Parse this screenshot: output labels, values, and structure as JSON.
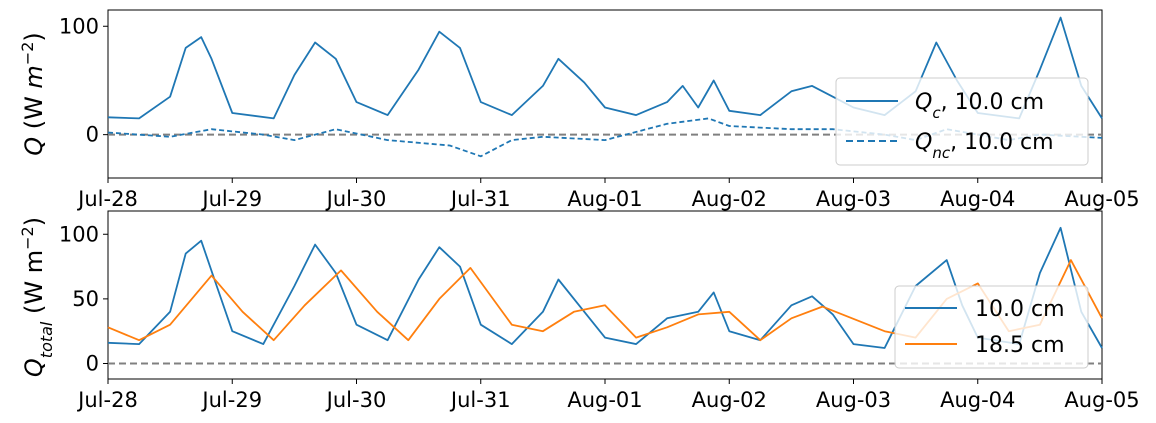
{
  "chart_data": [
    {
      "type": "line",
      "ylabel": "Q (W m⁻²)",
      "xlim": [
        "2019-07-28",
        "2019-08-05"
      ],
      "ylim": [
        -40,
        115
      ],
      "x_ticks": [
        "Jul-28",
        "Jul-29",
        "Jul-30",
        "Jul-31",
        "Aug-01",
        "Aug-02",
        "Aug-03",
        "Aug-04",
        "Aug-05"
      ],
      "y_ticks": [
        0,
        100
      ],
      "reference_line": {
        "y": 0,
        "style": "dashed",
        "color": "#808080"
      },
      "legend_position": "right",
      "series": [
        {
          "name": "Q_c, 10.0 cm",
          "style": "solid",
          "color": "#1f77b4",
          "points": [
            [
              "Jul-28",
              16
            ],
            [
              "Jul-28 06:00",
              15
            ],
            [
              "Jul-28 12:00",
              35
            ],
            [
              "Jul-28 15:00",
              80
            ],
            [
              "Jul-28 18:00",
              90
            ],
            [
              "Jul-28 20:00",
              70
            ],
            [
              "Jul-29 00:00",
              20
            ],
            [
              "Jul-29 08:00",
              15
            ],
            [
              "Jul-29 12:00",
              55
            ],
            [
              "Jul-29 16:00",
              85
            ],
            [
              "Jul-29 20:00",
              70
            ],
            [
              "Jul-30 00:00",
              30
            ],
            [
              "Jul-30 06:00",
              18
            ],
            [
              "Jul-30 12:00",
              60
            ],
            [
              "Jul-30 16:00",
              95
            ],
            [
              "Jul-30 20:00",
              80
            ],
            [
              "Jul-31 00:00",
              30
            ],
            [
              "Jul-31 06:00",
              18
            ],
            [
              "Jul-31 12:00",
              45
            ],
            [
              "Jul-31 15:00",
              70
            ],
            [
              "Jul-31 20:00",
              48
            ],
            [
              "Aug-01 00:00",
              25
            ],
            [
              "Aug-01 06:00",
              18
            ],
            [
              "Aug-01 12:00",
              30
            ],
            [
              "Aug-01 15:00",
              45
            ],
            [
              "Aug-01 18:00",
              25
            ],
            [
              "Aug-01 21:00",
              50
            ],
            [
              "Aug-02 00:00",
              22
            ],
            [
              "Aug-02 06:00",
              18
            ],
            [
              "Aug-02 12:00",
              40
            ],
            [
              "Aug-02 16:00",
              45
            ],
            [
              "Aug-02 20:00",
              35
            ],
            [
              "Aug-03 00:00",
              25
            ],
            [
              "Aug-03 06:00",
              18
            ],
            [
              "Aug-03 12:00",
              40
            ],
            [
              "Aug-03 16:00",
              85
            ],
            [
              "Aug-03 20:00",
              50
            ],
            [
              "Aug-04 00:00",
              20
            ],
            [
              "Aug-04 08:00",
              15
            ],
            [
              "Aug-04 12:00",
              60
            ],
            [
              "Aug-04 16:00",
              108
            ],
            [
              "Aug-04 20:00",
              45
            ],
            [
              "Aug-05 00:00",
              15
            ]
          ]
        },
        {
          "name": "Q_nc, 10.0 cm",
          "style": "dashed",
          "color": "#1f77b4",
          "points": [
            [
              "Jul-28",
              2
            ],
            [
              "Jul-28 12:00",
              -2
            ],
            [
              "Jul-28 20:00",
              5
            ],
            [
              "Jul-29 06:00",
              0
            ],
            [
              "Jul-29 12:00",
              -5
            ],
            [
              "Jul-29 20:00",
              5
            ],
            [
              "Jul-30 06:00",
              -5
            ],
            [
              "Jul-30 18:00",
              -10
            ],
            [
              "Jul-31 00:00",
              -20
            ],
            [
              "Jul-31 06:00",
              -5
            ],
            [
              "Jul-31 12:00",
              -2
            ],
            [
              "Aug-01 00:00",
              -5
            ],
            [
              "Aug-01 12:00",
              10
            ],
            [
              "Aug-01 20:00",
              15
            ],
            [
              "Aug-02 00:00",
              8
            ],
            [
              "Aug-02 12:00",
              5
            ],
            [
              "Aug-02 20:00",
              5
            ],
            [
              "Aug-03 06:00",
              0
            ],
            [
              "Aug-03 12:00",
              -5
            ],
            [
              "Aug-03 18:00",
              5
            ],
            [
              "Aug-04 06:00",
              -5
            ],
            [
              "Aug-04 12:00",
              0
            ],
            [
              "Aug-05 00:00",
              -3
            ]
          ]
        }
      ]
    },
    {
      "type": "line",
      "ylabel": "Q_total (W m⁻²)",
      "xlim": [
        "2019-07-28",
        "2019-08-05"
      ],
      "ylim": [
        -12,
        118
      ],
      "x_ticks": [
        "Jul-28",
        "Jul-29",
        "Jul-30",
        "Jul-31",
        "Aug-01",
        "Aug-02",
        "Aug-03",
        "Aug-04",
        "Aug-05"
      ],
      "y_ticks": [
        0,
        50,
        100
      ],
      "reference_line": {
        "y": 0,
        "style": "dashed",
        "color": "#808080"
      },
      "legend_position": "right",
      "series": [
        {
          "name": "10.0 cm",
          "style": "solid",
          "color": "#1f77b4",
          "points": [
            [
              "Jul-28",
              16
            ],
            [
              "Jul-28 06:00",
              15
            ],
            [
              "Jul-28 12:00",
              40
            ],
            [
              "Jul-28 15:00",
              85
            ],
            [
              "Jul-28 18:00",
              95
            ],
            [
              "Jul-28 21:00",
              60
            ],
            [
              "Jul-29 00:00",
              25
            ],
            [
              "Jul-29 06:00",
              15
            ],
            [
              "Jul-29 12:00",
              60
            ],
            [
              "Jul-29 16:00",
              92
            ],
            [
              "Jul-29 20:00",
              70
            ],
            [
              "Jul-30 00:00",
              30
            ],
            [
              "Jul-30 06:00",
              18
            ],
            [
              "Jul-30 12:00",
              65
            ],
            [
              "Jul-30 16:00",
              90
            ],
            [
              "Jul-30 20:00",
              75
            ],
            [
              "Jul-31 00:00",
              30
            ],
            [
              "Jul-31 06:00",
              15
            ],
            [
              "Jul-31 12:00",
              40
            ],
            [
              "Jul-31 15:00",
              65
            ],
            [
              "Jul-31 20:00",
              40
            ],
            [
              "Aug-01 00:00",
              20
            ],
            [
              "Aug-01 06:00",
              15
            ],
            [
              "Aug-01 12:00",
              35
            ],
            [
              "Aug-01 18:00",
              40
            ],
            [
              "Aug-01 21:00",
              55
            ],
            [
              "Aug-02 00:00",
              25
            ],
            [
              "Aug-02 06:00",
              18
            ],
            [
              "Aug-02 12:00",
              45
            ],
            [
              "Aug-02 16:00",
              52
            ],
            [
              "Aug-02 20:00",
              38
            ],
            [
              "Aug-03 00:00",
              15
            ],
            [
              "Aug-03 06:00",
              12
            ],
            [
              "Aug-03 12:00",
              60
            ],
            [
              "Aug-03 18:00",
              80
            ],
            [
              "Aug-03 21:00",
              45
            ],
            [
              "Aug-04 00:00",
              20
            ],
            [
              "Aug-04 08:00",
              15
            ],
            [
              "Aug-04 12:00",
              70
            ],
            [
              "Aug-04 16:00",
              105
            ],
            [
              "Aug-04 20:00",
              40
            ],
            [
              "Aug-05 00:00",
              12
            ]
          ]
        },
        {
          "name": "18.5 cm",
          "style": "solid",
          "color": "#ff7f0e",
          "points": [
            [
              "Jul-28",
              28
            ],
            [
              "Jul-28 06:00",
              18
            ],
            [
              "Jul-28 12:00",
              30
            ],
            [
              "Jul-28 20:00",
              68
            ],
            [
              "Jul-29 02:00",
              40
            ],
            [
              "Jul-29 08:00",
              18
            ],
            [
              "Jul-29 14:00",
              45
            ],
            [
              "Jul-29 21:00",
              72
            ],
            [
              "Jul-30 04:00",
              40
            ],
            [
              "Jul-30 10:00",
              18
            ],
            [
              "Jul-30 16:00",
              50
            ],
            [
              "Jul-30 22:00",
              74
            ],
            [
              "Jul-31 06:00",
              30
            ],
            [
              "Jul-31 12:00",
              25
            ],
            [
              "Jul-31 18:00",
              40
            ],
            [
              "Aug-01 00:00",
              45
            ],
            [
              "Aug-01 06:00",
              20
            ],
            [
              "Aug-01 12:00",
              28
            ],
            [
              "Aug-01 18:00",
              38
            ],
            [
              "Aug-02 00:00",
              40
            ],
            [
              "Aug-02 06:00",
              18
            ],
            [
              "Aug-02 12:00",
              35
            ],
            [
              "Aug-02 18:00",
              44
            ],
            [
              "Aug-03 06:00",
              25
            ],
            [
              "Aug-03 12:00",
              20
            ],
            [
              "Aug-03 18:00",
              50
            ],
            [
              "Aug-04 00:00",
              62
            ],
            [
              "Aug-04 06:00",
              25
            ],
            [
              "Aug-04 12:00",
              30
            ],
            [
              "Aug-04 18:00",
              80
            ],
            [
              "Aug-05 00:00",
              35
            ]
          ]
        }
      ]
    }
  ]
}
